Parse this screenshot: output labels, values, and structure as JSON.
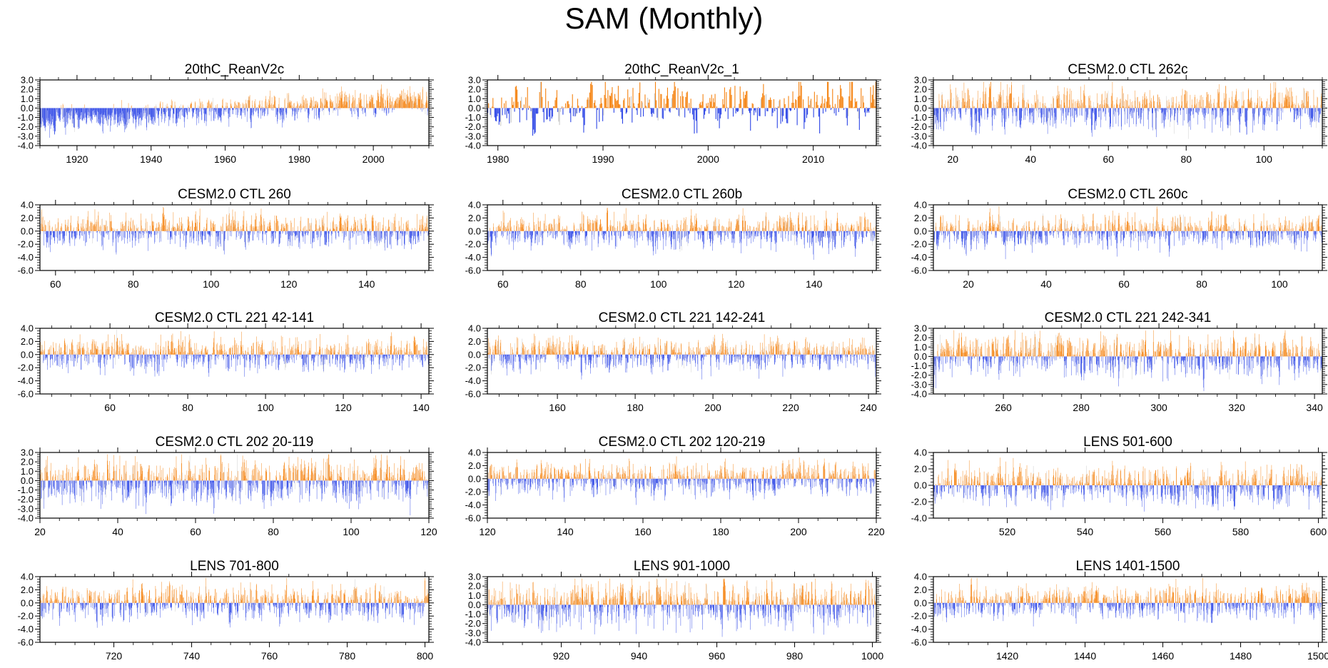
{
  "title": "SAM (Monthly)",
  "colors": {
    "positive": "#f5820f",
    "negative": "#2b44e6",
    "neutral": "#c8c8c8"
  },
  "chart_data": [
    {
      "type": "bar",
      "title": "20thC_ReanV2c",
      "xlim": [
        1910,
        2015
      ],
      "ylim": [
        -4,
        3
      ],
      "yticks": [
        3.0,
        2.0,
        1.0,
        0.0,
        -1.0,
        -2.0,
        -3.0,
        -4.0
      ],
      "xticks": [
        1920,
        1940,
        1960,
        1980,
        2000
      ],
      "seed": 11,
      "n": 1250,
      "trend": [
        -1.5,
        1.0
      ],
      "amp": 0.55
    },
    {
      "type": "bar",
      "title": "20thC_ReanV2c_1",
      "xlim": [
        1979,
        2016
      ],
      "ylim": [
        -4,
        3
      ],
      "yticks": [
        3.0,
        2.0,
        1.0,
        0.0,
        -1.0,
        -2.0,
        -3.0,
        -4.0
      ],
      "xticks": [
        1980,
        1990,
        2000,
        2010
      ],
      "seed": 23,
      "n": 450,
      "trend": [
        0.2,
        0.3
      ],
      "amp": 1.0
    },
    {
      "type": "bar",
      "title": "CESM2.0 CTL 262c",
      "xlim": [
        15,
        115
      ],
      "ylim": [
        -4,
        3
      ],
      "yticks": [
        3.0,
        2.0,
        1.0,
        0.0,
        -1.0,
        -2.0,
        -3.0,
        -4.0
      ],
      "xticks": [
        20,
        40,
        60,
        80,
        100
      ],
      "seed": 37,
      "n": 1200,
      "trend": [
        0,
        0
      ],
      "amp": 0.95
    },
    {
      "type": "bar",
      "title": "CESM2.0 CTL 260",
      "xlim": [
        56,
        156
      ],
      "ylim": [
        -6,
        4
      ],
      "yticks": [
        4.0,
        2.0,
        0.0,
        -2.0,
        -4.0,
        -6.0
      ],
      "xticks": [
        60,
        80,
        100,
        120,
        140
      ],
      "seed": 41,
      "n": 1200,
      "trend": [
        0,
        0
      ],
      "amp": 1.05
    },
    {
      "type": "bar",
      "title": "CESM2.0 CTL 260b",
      "xlim": [
        56,
        156
      ],
      "ylim": [
        -6,
        4
      ],
      "yticks": [
        4.0,
        2.0,
        0.0,
        -2.0,
        -4.0,
        -6.0
      ],
      "xticks": [
        60,
        80,
        100,
        120,
        140
      ],
      "seed": 53,
      "n": 1200,
      "trend": [
        0,
        0
      ],
      "amp": 1.05
    },
    {
      "type": "bar",
      "title": "CESM2.0 CTL 260c",
      "xlim": [
        11,
        111
      ],
      "ylim": [
        -6,
        4
      ],
      "yticks": [
        4.0,
        2.0,
        0.0,
        -2.0,
        -4.0,
        -6.0
      ],
      "xticks": [
        20,
        40,
        60,
        80,
        100
      ],
      "seed": 67,
      "n": 1200,
      "trend": [
        0,
        0
      ],
      "amp": 1.05
    },
    {
      "type": "bar",
      "title": "CESM2.0 CTL 221 42-141",
      "xlim": [
        42,
        142
      ],
      "ylim": [
        -6,
        4
      ],
      "yticks": [
        4.0,
        2.0,
        0.0,
        -2.0,
        -4.0,
        -6.0
      ],
      "xticks": [
        60,
        80,
        100,
        120,
        140
      ],
      "seed": 71,
      "n": 1200,
      "trend": [
        0,
        0
      ],
      "amp": 1.05
    },
    {
      "type": "bar",
      "title": "CESM2.0 CTL 221 142-241",
      "xlim": [
        142,
        242
      ],
      "ylim": [
        -6,
        4
      ],
      "yticks": [
        4.0,
        2.0,
        0.0,
        -2.0,
        -4.0,
        -6.0
      ],
      "xticks": [
        160,
        180,
        200,
        220,
        240
      ],
      "seed": 83,
      "n": 1200,
      "trend": [
        0,
        0
      ],
      "amp": 1.05
    },
    {
      "type": "bar",
      "title": "CESM2.0 CTL 221 242-341",
      "xlim": [
        242,
        342
      ],
      "ylim": [
        -4,
        3
      ],
      "yticks": [
        3.0,
        2.0,
        1.0,
        0.0,
        -1.0,
        -2.0,
        -3.0,
        -4.0
      ],
      "xticks": [
        260,
        280,
        300,
        320,
        340
      ],
      "seed": 97,
      "n": 1200,
      "trend": [
        0,
        0
      ],
      "amp": 0.95
    },
    {
      "type": "bar",
      "title": "CESM2.0 CTL 202 20-119",
      "xlim": [
        20,
        120
      ],
      "ylim": [
        -4,
        3
      ],
      "yticks": [
        3.0,
        2.0,
        1.0,
        0.0,
        -1.0,
        -2.0,
        -3.0,
        -4.0
      ],
      "xticks": [
        20,
        40,
        60,
        80,
        100,
        120
      ],
      "seed": 101,
      "n": 1200,
      "trend": [
        0,
        0
      ],
      "amp": 1.0
    },
    {
      "type": "bar",
      "title": "CESM2.0 CTL 202 120-219",
      "xlim": [
        120,
        220
      ],
      "ylim": [
        -6,
        4
      ],
      "yticks": [
        4.0,
        2.0,
        0.0,
        -2.0,
        -4.0,
        -6.0
      ],
      "xticks": [
        120,
        140,
        160,
        180,
        200,
        220
      ],
      "seed": 113,
      "n": 1200,
      "trend": [
        0,
        0
      ],
      "amp": 1.05
    },
    {
      "type": "bar",
      "title": "LENS 501-600",
      "xlim": [
        501,
        601
      ],
      "ylim": [
        -4,
        4
      ],
      "yticks": [
        4.0,
        2.0,
        0.0,
        -2.0,
        -4.0
      ],
      "xticks": [
        520,
        540,
        560,
        580,
        600
      ],
      "seed": 127,
      "n": 1200,
      "trend": [
        0,
        0
      ],
      "amp": 0.95
    },
    {
      "type": "bar",
      "title": "LENS 701-800",
      "xlim": [
        701,
        801
      ],
      "ylim": [
        -6,
        4
      ],
      "yticks": [
        4.0,
        2.0,
        0.0,
        -2.0,
        -4.0,
        -6.0
      ],
      "xticks": [
        720,
        740,
        760,
        780,
        800
      ],
      "seed": 131,
      "n": 1200,
      "trend": [
        0,
        0
      ],
      "amp": 1.05
    },
    {
      "type": "bar",
      "title": "LENS 901-1000",
      "xlim": [
        901,
        1001
      ],
      "ylim": [
        -4,
        3
      ],
      "yticks": [
        3.0,
        2.0,
        1.0,
        0.0,
        -1.0,
        -2.0,
        -3.0,
        -4.0
      ],
      "xticks": [
        920,
        940,
        960,
        980,
        1000
      ],
      "seed": 139,
      "n": 1200,
      "trend": [
        0,
        0
      ],
      "amp": 1.0
    },
    {
      "type": "bar",
      "title": "LENS 1401-1500",
      "xlim": [
        1401,
        1501
      ],
      "ylim": [
        -6,
        4
      ],
      "yticks": [
        4.0,
        2.0,
        0.0,
        -2.0,
        -4.0,
        -6.0
      ],
      "xticks": [
        1420,
        1440,
        1460,
        1480,
        1500
      ],
      "seed": 149,
      "n": 1200,
      "trend": [
        0,
        0
      ],
      "amp": 1.05
    }
  ]
}
